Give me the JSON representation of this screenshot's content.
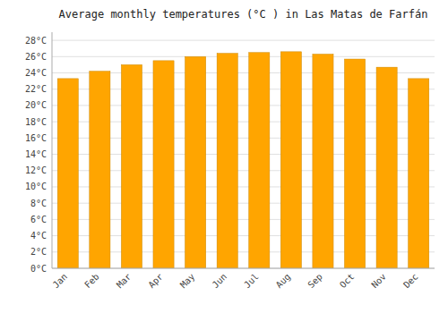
{
  "chart_data": {
    "type": "bar",
    "title": "Average monthly temperatures (°C ) in Las Matas de Farfán",
    "categories": [
      "Jan",
      "Feb",
      "Mar",
      "Apr",
      "May",
      "Jun",
      "Jul",
      "Aug",
      "Sep",
      "Oct",
      "Nov",
      "Dec"
    ],
    "values": [
      23.3,
      24.2,
      25.0,
      25.5,
      26.0,
      26.4,
      26.5,
      26.6,
      26.3,
      25.7,
      24.7,
      23.3
    ],
    "color": "#FFA500",
    "ylim": [
      0,
      29
    ],
    "yticks": [
      {
        "value": 0,
        "label": "0°C"
      },
      {
        "value": 2,
        "label": "2°C"
      },
      {
        "value": 4,
        "label": "4°C"
      },
      {
        "value": 6,
        "label": "6°C"
      },
      {
        "value": 8,
        "label": "8°C"
      },
      {
        "value": 10,
        "label": "10°C"
      },
      {
        "value": 12,
        "label": "12°C"
      },
      {
        "value": 14,
        "label": "14°C"
      },
      {
        "value": 16,
        "label": "16°C"
      },
      {
        "value": 18,
        "label": "18°C"
      },
      {
        "value": 20,
        "label": "20°C"
      },
      {
        "value": 22,
        "label": "22°C"
      },
      {
        "value": 24,
        "label": "24°C"
      },
      {
        "value": 26,
        "label": "26°C"
      },
      {
        "value": 28,
        "label": "28°C"
      }
    ],
    "grid": true
  }
}
